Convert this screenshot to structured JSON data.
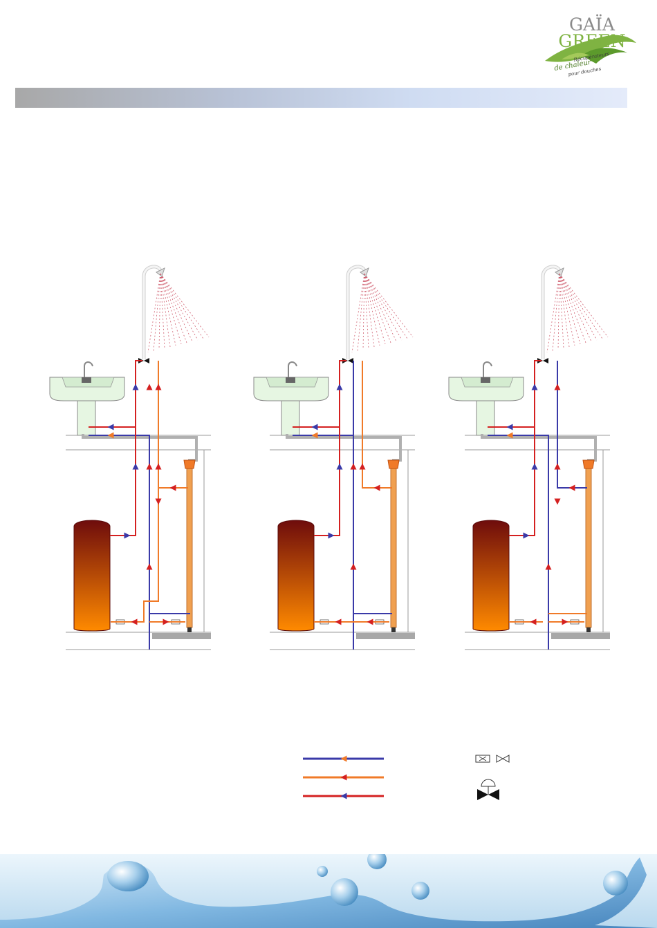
{
  "logo": {
    "brand_line1": "GAÏA",
    "brand_line2": "GREEN",
    "tagline_1": "Récupérateurs",
    "tagline_2": "de chaleur",
    "tagline_3": "pour douches"
  },
  "colors": {
    "cold_water": "#3a3aa8",
    "preheated_water": "#f07a28",
    "hot_water": "#d42020",
    "tank_top": "#6e0c0c",
    "tank_bottom": "#ff8a00",
    "sink": "#e6f6e2",
    "drain": "#b0b0b0",
    "recuperator": "#f0a050"
  },
  "diagrams": [
    {
      "id": "config-1",
      "recuperator_feeds": "tank-and-shower"
    },
    {
      "id": "config-2",
      "recuperator_feeds": "tank"
    },
    {
      "id": "config-3",
      "recuperator_feeds": "shower"
    }
  ],
  "legend": {
    "lines": [
      {
        "color": "#3a3aa8",
        "arrow": "#f07a28"
      },
      {
        "color": "#f07a28",
        "arrow": "#d42020"
      },
      {
        "color": "#d42020",
        "arrow": "#3a3aa8"
      }
    ],
    "symbols": [
      "check-valve-icon",
      "thermostatic-mixer-icon"
    ]
  }
}
